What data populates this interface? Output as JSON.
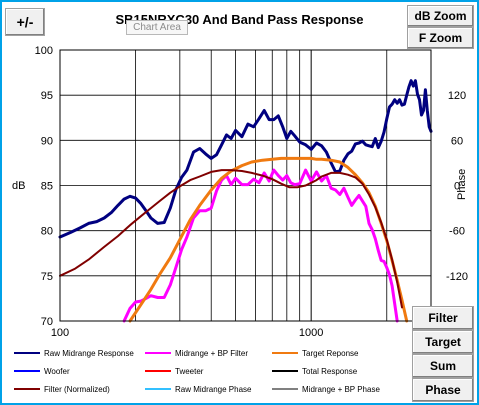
{
  "window": {
    "title": "SB15NRXC30 And Band Pass Response",
    "tooltip": "Chart Area"
  },
  "buttons": {
    "plus_minus": "+/-",
    "db_zoom": "dB Zoom",
    "f_zoom": "F Zoom",
    "filter": "Filter",
    "target": "Target",
    "sum": "Sum",
    "phase": "Phase"
  },
  "legend": [
    {
      "label": "Raw Midrange Response",
      "color": "#000080"
    },
    {
      "label": "Midrange + BP Filter",
      "color": "#ff00ff"
    },
    {
      "label": "Target Reponse",
      "color": "#f07a10"
    },
    {
      "label": "Woofer",
      "color": "#0000ff"
    },
    {
      "label": "Tweeter",
      "color": "#ff0000"
    },
    {
      "label": "Total Response",
      "color": "#000000"
    },
    {
      "label": "Filter (Normalized)",
      "color": "#800000"
    },
    {
      "label": "Raw Midrange Phase",
      "color": "#33c0ff"
    },
    {
      "label": "Midrange + BP Phase",
      "color": "#808080"
    }
  ],
  "chart_data": {
    "type": "line",
    "title": "SB15NRXC30 And Band Pass Response",
    "xlabel": "",
    "ylabel": "dB",
    "y2label": "Phase",
    "xscale": "log",
    "xlim": [
      100,
      3000
    ],
    "ylim": [
      70,
      100
    ],
    "y2lim": [
      -180,
      180
    ],
    "x_tick_labels": [
      "100",
      "1000"
    ],
    "y_ticks": [
      70,
      75,
      80,
      85,
      90,
      95,
      100
    ],
    "y2_ticks": [
      -120,
      -60,
      0,
      60,
      120
    ],
    "grid": true,
    "legend_position": "bottom",
    "series": [
      {
        "name": "Raw Midrange Response",
        "color": "#000080",
        "x": [
          100,
          110,
          120,
          130,
          140,
          150,
          160,
          170,
          180,
          190,
          200,
          210,
          220,
          230,
          245,
          260,
          275,
          290,
          305,
          320,
          340,
          360,
          380,
          400,
          420,
          440,
          460,
          480,
          500,
          530,
          560,
          590,
          620,
          650,
          680,
          710,
          740,
          770,
          800,
          830,
          860,
          900,
          950,
          1000,
          1050,
          1100,
          1150,
          1200,
          1250,
          1300,
          1350,
          1400,
          1450,
          1500,
          1550,
          1600,
          1650,
          1700,
          1750,
          1800,
          1850,
          1900,
          1950,
          2000,
          2050,
          2100,
          2150,
          2200,
          2250,
          2300,
          2350,
          2400,
          2450,
          2500,
          2550,
          2600,
          2650,
          2700,
          2750,
          2800,
          2850,
          2900,
          2950,
          3000
        ],
        "y": [
          79.3,
          79.8,
          80.3,
          80.8,
          81.0,
          81.4,
          82.0,
          82.8,
          83.5,
          83.8,
          83.6,
          83.0,
          82.2,
          81.4,
          80.8,
          80.9,
          82.5,
          84.6,
          85.9,
          86.7,
          88.7,
          89.1,
          88.5,
          88.0,
          88.4,
          89.5,
          90.6,
          90.2,
          91.1,
          90.4,
          91.8,
          91.5,
          92.4,
          93.3,
          92.3,
          92.3,
          92.7,
          91.5,
          90.2,
          91.0,
          90.5,
          89.8,
          89.5,
          89.0,
          89.7,
          89.4,
          88.7,
          87.5,
          86.5,
          86.6,
          87.8,
          88.5,
          88.8,
          89.6,
          89.7,
          89.9,
          89.5,
          89.4,
          89.3,
          90.2,
          89.2,
          89.9,
          90.9,
          92.4,
          93.7,
          94.0,
          94.5,
          94.1,
          94.5,
          93.9,
          94.0,
          95.0,
          95.9,
          96.6,
          96.0,
          96.6,
          95.1,
          94.5,
          92.8,
          93.3,
          95.6,
          93.3,
          91.5,
          91.0
        ]
      },
      {
        "name": "Midrange + BP Filter",
        "color": "#ff00ff",
        "x": [
          180,
          190,
          200,
          210,
          220,
          230,
          245,
          260,
          275,
          290,
          305,
          320,
          340,
          360,
          380,
          400,
          420,
          440,
          460,
          480,
          500,
          530,
          560,
          590,
          620,
          650,
          680,
          710,
          740,
          770,
          800,
          830,
          860,
          900,
          950,
          1000,
          1050,
          1100,
          1150,
          1200,
          1250,
          1300,
          1350,
          1400,
          1450,
          1500,
          1550,
          1600,
          1650,
          1700,
          1750,
          1800,
          1850,
          1900,
          1950,
          2000,
          2050,
          2100,
          2150,
          2200
        ],
        "y": [
          70.0,
          71.4,
          72.1,
          72.2,
          72.5,
          72.8,
          72.6,
          72.6,
          74.0,
          76.0,
          77.9,
          79.3,
          81.4,
          82.2,
          82.2,
          82.5,
          84.4,
          85.6,
          86.1,
          85.1,
          85.8,
          85.1,
          85.1,
          85.7,
          85.3,
          86.4,
          85.5,
          86.7,
          86.1,
          85.6,
          86.1,
          85.3,
          85.1,
          85.2,
          86.7,
          85.5,
          86.5,
          85.5,
          86.1,
          84.7,
          84.5,
          84.0,
          84.7,
          83.7,
          82.8,
          83.4,
          83.9,
          83.3,
          82.7,
          80.8,
          80.1,
          79.1,
          77.8,
          76.7,
          76.6,
          75.9,
          75.1,
          73.9,
          71.9,
          70.0
        ]
      },
      {
        "name": "Target Reponse",
        "color": "#f07a10",
        "x": [
          190,
          210,
          230,
          250,
          275,
          300,
          330,
          360,
          400,
          440,
          480,
          530,
          580,
          640,
          700,
          760,
          820,
          880,
          950,
          1000,
          1050,
          1100,
          1200,
          1300,
          1400,
          1500,
          1600,
          1700,
          1800,
          1900,
          2000,
          2100,
          2200,
          2300,
          2400
        ],
        "y": [
          70.0,
          71.8,
          73.5,
          75.2,
          77.0,
          79.0,
          81.2,
          82.8,
          84.5,
          85.8,
          86.6,
          87.2,
          87.6,
          87.8,
          87.9,
          88.0,
          88.0,
          88.0,
          88.0,
          88.0,
          87.9,
          87.9,
          87.8,
          87.6,
          87.0,
          86.2,
          85.3,
          84.2,
          82.7,
          80.8,
          78.9,
          76.7,
          74.5,
          72.3,
          70.0
        ]
      },
      {
        "name": "Filter (Normalized)",
        "color": "#800000",
        "x": [
          100,
          115,
          130,
          150,
          170,
          190,
          210,
          230,
          250,
          275,
          300,
          330,
          360,
          400,
          440,
          480,
          530,
          580,
          640,
          700,
          760,
          820,
          880,
          950,
          1000,
          1050,
          1100,
          1200,
          1300,
          1400,
          1500,
          1600,
          1700,
          1800,
          1900,
          2000,
          2100,
          2200,
          2300
        ],
        "y": [
          75.0,
          75.8,
          76.8,
          78.2,
          79.4,
          80.6,
          81.6,
          82.5,
          83.3,
          84.2,
          84.9,
          85.6,
          86.0,
          86.5,
          86.7,
          86.7,
          86.6,
          86.4,
          86.1,
          85.7,
          85.2,
          84.8,
          84.8,
          85.0,
          85.3,
          85.6,
          86.0,
          86.4,
          86.4,
          86.2,
          85.9,
          85.2,
          84.0,
          82.6,
          80.9,
          79.0,
          76.8,
          74.3,
          71.5
        ]
      }
    ]
  }
}
